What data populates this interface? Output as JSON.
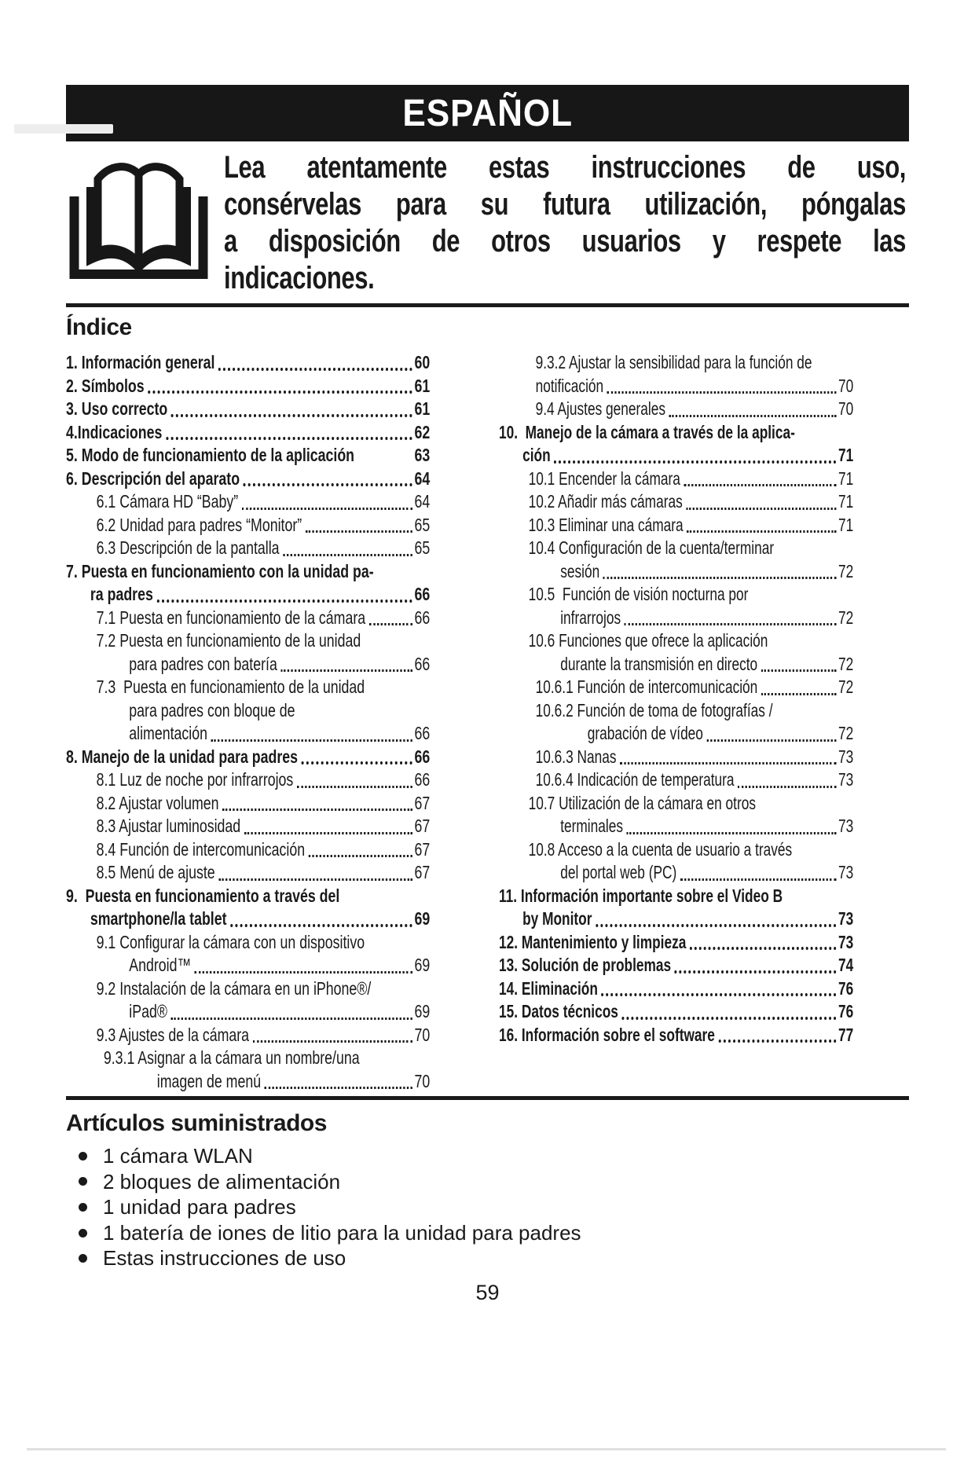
{
  "colors": {
    "ink": "#1a1a1a",
    "banner_bg": "#171717",
    "banner_text": "#ffffff",
    "page_bg": "#ffffff"
  },
  "header": {
    "title": "ESPAÑOL"
  },
  "intro": {
    "icon": "open-book",
    "lines": [
      "Lea atentamente estas instrucciones de uso,",
      "consérvelas para su futura utilización, póngalas",
      "a disposición de otros usuarios y respete las",
      "indicaciones."
    ]
  },
  "toc": {
    "heading": "Índice",
    "left": [
      {
        "text": "1. Información general",
        "page": "60",
        "leader": true,
        "bold": true,
        "indent": 0
      },
      {
        "text": "2. Símbolos",
        "page": "61",
        "leader": true,
        "bold": true,
        "indent": 0
      },
      {
        "text": "3. Uso correcto",
        "page": "61",
        "leader": true,
        "bold": true,
        "indent": 0
      },
      {
        "text": "4.Indicaciones",
        "page": "62",
        "leader": true,
        "bold": true,
        "indent": 0
      },
      {
        "text": "5. Modo de funcionamiento de la aplicación",
        "page": "63",
        "leader": false,
        "bold": true,
        "indent": 0
      },
      {
        "text": "6. Descripción del aparato",
        "page": "64",
        "leader": true,
        "bold": true,
        "indent": 0
      },
      {
        "text": "6.1 Cámara HD “Baby”",
        "page": "64",
        "leader": true,
        "bold": false,
        "indent": 2
      },
      {
        "text": "6.2 Unidad para padres “Monitor”",
        "page": "65",
        "leader": true,
        "bold": false,
        "indent": 2
      },
      {
        "text": "6.3 Descripción de la pantalla",
        "page": "65",
        "leader": true,
        "bold": false,
        "indent": 2
      },
      {
        "text": "7. Puesta en funcionamiento con la unidad pa-",
        "page": null,
        "leader": false,
        "bold": true,
        "indent": 0
      },
      {
        "text": "ra padres",
        "page": "66",
        "leader": true,
        "bold": true,
        "indent": 1
      },
      {
        "text": "7.1 Puesta en funcionamiento de la cámara",
        "page": "66",
        "leader": true,
        "bold": false,
        "indent": 2
      },
      {
        "text": "7.2 Puesta en funcionamiento de la unidad",
        "page": null,
        "leader": false,
        "bold": false,
        "indent": 2
      },
      {
        "text": "para padres con batería",
        "page": "66",
        "leader": true,
        "bold": false,
        "indent": 3
      },
      {
        "text": "7.3  Puesta en funcionamiento de la unidad",
        "page": null,
        "leader": false,
        "bold": false,
        "indent": 2
      },
      {
        "text": "para padres con bloque de",
        "page": null,
        "leader": false,
        "bold": false,
        "indent": 3
      },
      {
        "text": "alimentación",
        "page": "66",
        "leader": true,
        "bold": false,
        "indent": 3
      },
      {
        "text": "8. Manejo de la unidad para padres",
        "page": "66",
        "leader": true,
        "bold": true,
        "indent": 0
      },
      {
        "text": "8.1 Luz de noche por infrarrojos",
        "page": "66",
        "leader": true,
        "bold": false,
        "indent": 2
      },
      {
        "text": "8.2 Ajustar volumen",
        "page": "67",
        "leader": true,
        "bold": false,
        "indent": 2
      },
      {
        "text": "8.3 Ajustar luminosidad",
        "page": "67",
        "leader": true,
        "bold": false,
        "indent": 2
      },
      {
        "text": "8.4 Función de intercomunicación",
        "page": "67",
        "leader": true,
        "bold": false,
        "indent": 2
      },
      {
        "text": "8.5 Menú de ajuste",
        "page": "67",
        "leader": true,
        "bold": false,
        "indent": 2
      },
      {
        "text": "9.  Puesta en funcionamiento a través del",
        "page": null,
        "leader": false,
        "bold": true,
        "indent": 0
      },
      {
        "text": "smartphone/la tablet",
        "page": "69",
        "leader": true,
        "bold": true,
        "indent": 1
      },
      {
        "text": "9.1 Configurar la cámara con un dispositivo",
        "page": null,
        "leader": false,
        "bold": false,
        "indent": 2
      },
      {
        "text": "Android™",
        "page": "69",
        "leader": true,
        "bold": false,
        "indent": 3
      },
      {
        "text": "9.2 Instalación de la cámara en un iPhone®/",
        "page": null,
        "leader": false,
        "bold": false,
        "indent": 2
      },
      {
        "text": "iPad®",
        "page": "69",
        "leader": true,
        "bold": false,
        "indent": 3
      },
      {
        "text": "9.3 Ajustes de la cámara",
        "page": "70",
        "leader": true,
        "bold": false,
        "indent": 2
      },
      {
        "text": "9.3.1 Asignar a la cámara un nombre/una",
        "page": null,
        "leader": false,
        "bold": false,
        "indent": 4
      },
      {
        "text": "imagen de menú",
        "page": "70",
        "leader": true,
        "bold": false,
        "indent": 5
      }
    ],
    "right": [
      {
        "text": "9.3.2 Ajustar la sensibilidad para la función de",
        "page": null,
        "leader": false,
        "bold": false,
        "indent": 4
      },
      {
        "text": "notificación",
        "page": "70",
        "leader": true,
        "bold": false,
        "indent": 4
      },
      {
        "text": "9.4 Ajustes generales",
        "page": "70",
        "leader": true,
        "bold": false,
        "indent": 4
      },
      {
        "text": "10.  Manejo de la cámara a través de la aplica-",
        "page": null,
        "leader": false,
        "bold": true,
        "indent": 0
      },
      {
        "text": "ción",
        "page": "71",
        "leader": true,
        "bold": true,
        "indent": 1
      },
      {
        "text": "10.1 Encender la cámara",
        "page": "71",
        "leader": true,
        "bold": false,
        "indent": 2
      },
      {
        "text": "10.2 Añadir más cámaras",
        "page": "71",
        "leader": true,
        "bold": false,
        "indent": 2
      },
      {
        "text": "10.3 Eliminar una cámara",
        "page": "71",
        "leader": true,
        "bold": false,
        "indent": 2
      },
      {
        "text": "10.4 Configuración de la cuenta/terminar",
        "page": null,
        "leader": false,
        "bold": false,
        "indent": 2
      },
      {
        "text": "sesión",
        "page": "72",
        "leader": true,
        "bold": false,
        "indent": 3
      },
      {
        "text": "10.5  Función de visión nocturna por",
        "page": null,
        "leader": false,
        "bold": false,
        "indent": 2
      },
      {
        "text": "infrarrojos",
        "page": "72",
        "leader": true,
        "bold": false,
        "indent": 3
      },
      {
        "text": "10.6 Funciones que ofrece la aplicación",
        "page": null,
        "leader": false,
        "bold": false,
        "indent": 2
      },
      {
        "text": "durante la transmisión en directo",
        "page": "72",
        "leader": true,
        "bold": false,
        "indent": 3
      },
      {
        "text": "10.6.1 Función de intercomunicación",
        "page": "72",
        "leader": true,
        "bold": false,
        "indent": 4
      },
      {
        "text": "10.6.2 Función de toma de fotografías /",
        "page": null,
        "leader": false,
        "bold": false,
        "indent": 4
      },
      {
        "text": "grabación de vídeo",
        "page": "72",
        "leader": true,
        "bold": false,
        "indent": 5
      },
      {
        "text": "10.6.3 Nanas",
        "page": "73",
        "leader": true,
        "bold": false,
        "indent": 4
      },
      {
        "text": "10.6.4 Indicación de temperatura",
        "page": "73",
        "leader": true,
        "bold": false,
        "indent": 4
      },
      {
        "text": "10.7 Utilización de la cámara en otros",
        "page": null,
        "leader": false,
        "bold": false,
        "indent": 2
      },
      {
        "text": "terminales",
        "page": "73",
        "leader": true,
        "bold": false,
        "indent": 3
      },
      {
        "text": "10.8 Acceso a la cuenta de usuario a través",
        "page": null,
        "leader": false,
        "bold": false,
        "indent": 2
      },
      {
        "text": "del portal web (PC)",
        "page": "73",
        "leader": true,
        "bold": false,
        "indent": 3
      },
      {
        "text": "11. Información importante sobre el Video B",
        "page": null,
        "leader": false,
        "bold": true,
        "indent": 0
      },
      {
        "text": "by Monitor",
        "page": "73",
        "leader": true,
        "bold": true,
        "indent": 1
      },
      {
        "text": "12. Mantenimiento y limpieza",
        "page": "73",
        "leader": true,
        "bold": true,
        "indent": 0
      },
      {
        "text": "13. Solución de problemas",
        "page": "74",
        "leader": true,
        "bold": true,
        "indent": 0
      },
      {
        "text": "14. Eliminación",
        "page": "76",
        "leader": true,
        "bold": true,
        "indent": 0
      },
      {
        "text": "15. Datos técnicos",
        "page": "76",
        "leader": true,
        "bold": true,
        "indent": 0
      },
      {
        "text": "16. Información sobre el software",
        "page": "77",
        "leader": true,
        "bold": true,
        "indent": 0
      }
    ]
  },
  "supplied": {
    "heading": "Artículos suministrados",
    "items": [
      "1 cámara WLAN",
      "2 bloques de alimentación",
      "1 unidad para padres",
      "1 batería de iones de litio para la unidad para padres",
      "Estas instrucciones de uso"
    ]
  },
  "page_number": "59"
}
